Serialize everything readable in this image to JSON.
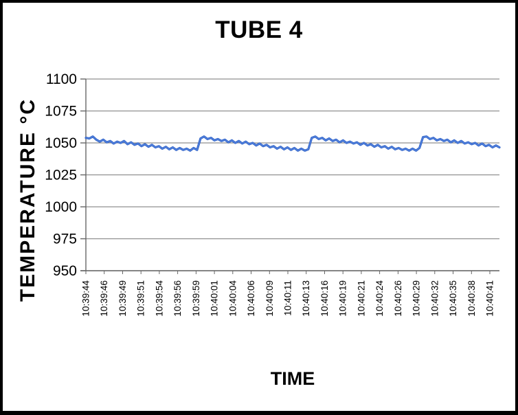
{
  "chart_data": {
    "type": "line",
    "title": "TUBE 4",
    "xlabel": "TIME",
    "ylabel": "TEMPERATURE  °C",
    "ylim": [
      950,
      1100
    ],
    "yticks": [
      950,
      975,
      1000,
      1025,
      1050,
      1075,
      1100
    ],
    "x_tick_labels": [
      "10:39:44",
      "10:39:46",
      "10:39:49",
      "10:39:51",
      "10:39:54",
      "10:39:56",
      "10:39:59",
      "10:40:01",
      "10:40:04",
      "10:40:06",
      "10:40:09",
      "10:40:11",
      "10:40:13",
      "10:40:16",
      "10:40:19",
      "10:40:21",
      "10:40:24",
      "10:40:26",
      "10:40:29",
      "10:40:32",
      "10:40:35",
      "10:40:38",
      "10:40:41"
    ],
    "grid": "horizontal",
    "legend": "none",
    "colors": {
      "gridline": "#8f8f8f",
      "axis": "#666666",
      "text": "#000000",
      "line": "#2f62c8",
      "line_highlight": "#5e8ce2"
    },
    "series": [
      {
        "name": "TUBE 4",
        "values": [
          1054,
          1053.5,
          1055,
          1052.5,
          1051,
          1052.5,
          1050.5,
          1051.5,
          1049.5,
          1051,
          1050,
          1051.5,
          1049,
          1050.5,
          1048.5,
          1049.5,
          1047.5,
          1049,
          1047,
          1048.5,
          1046.5,
          1047.5,
          1045.5,
          1047,
          1045,
          1046.5,
          1044.5,
          1046,
          1044.5,
          1045.5,
          1044,
          1046,
          1044.5,
          1053.5,
          1055,
          1053,
          1054,
          1052,
          1053,
          1051.5,
          1052.5,
          1050.5,
          1052,
          1050,
          1051.5,
          1049.5,
          1051,
          1049,
          1050,
          1048,
          1049.5,
          1047.5,
          1048.5,
          1046.5,
          1047.5,
          1045.5,
          1047,
          1045,
          1046.5,
          1044.5,
          1046,
          1044,
          1045.5,
          1044,
          1045,
          1054,
          1055,
          1053,
          1054,
          1052,
          1053.5,
          1051.5,
          1052.5,
          1050.5,
          1052,
          1050,
          1051,
          1049.5,
          1050.5,
          1048.5,
          1050,
          1048,
          1049,
          1047,
          1048.5,
          1046.5,
          1047.5,
          1045.5,
          1047,
          1045,
          1046,
          1044.5,
          1045.5,
          1044,
          1045.5,
          1044,
          1046,
          1054.5,
          1055,
          1053,
          1054,
          1052,
          1053,
          1051.5,
          1052.5,
          1050.5,
          1052,
          1050,
          1051.5,
          1049.5,
          1050.5,
          1049,
          1050,
          1048,
          1049.5,
          1047.5,
          1048.5,
          1046.5,
          1048,
          1046.5
        ]
      }
    ]
  }
}
